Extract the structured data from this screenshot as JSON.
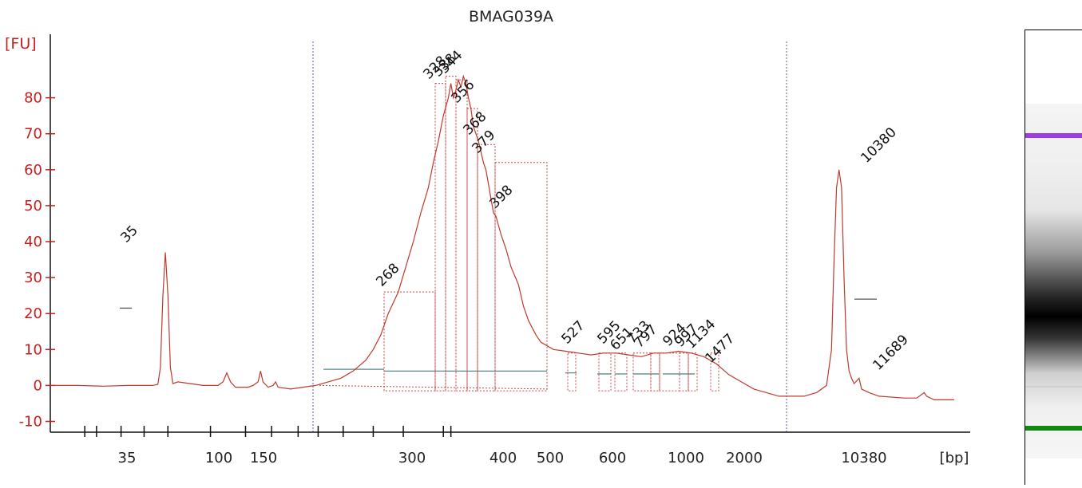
{
  "chart_data": {
    "type": "line",
    "title": "BMAG039A",
    "ylabel": "[FU]",
    "xlabel": "[bp]",
    "ylim": [
      -13,
      95
    ],
    "y_ticks": [
      -10,
      0,
      10,
      20,
      30,
      40,
      50,
      60,
      70,
      80
    ],
    "x_ticks": [
      "35",
      "",
      "100",
      "150",
      "",
      "300",
      "400",
      "500",
      "600",
      "",
      "1000",
      "2000",
      "",
      "10380",
      "",
      "[bp]"
    ],
    "markers": {
      "lower": {
        "label": "35",
        "color": "#1e8c1e",
        "height": 37
      },
      "upper": {
        "label": "10380",
        "color": "#a040e0",
        "height": 60
      }
    },
    "peaks": [
      {
        "label": "268",
        "height": 26
      },
      {
        "label": "328",
        "height": 84
      },
      {
        "label": "338",
        "height": 86
      },
      {
        "label": "344",
        "height": 85
      },
      {
        "label": "356",
        "height": 77
      },
      {
        "label": "368",
        "height": 67
      },
      {
        "label": "379",
        "height": 62
      },
      {
        "label": "398",
        "height": 48
      },
      {
        "label": "527",
        "height": 10
      },
      {
        "label": "595",
        "height": 9
      },
      {
        "label": "651",
        "height": 8
      },
      {
        "label": "733",
        "height": 9
      },
      {
        "label": "797",
        "height": 9
      },
      {
        "label": "924",
        "height": 8
      },
      {
        "label": "997",
        "height": 8
      },
      {
        "label": "1134",
        "height": 8
      },
      {
        "label": "1477",
        "height": 4
      },
      {
        "label": "11689",
        "height": 2
      }
    ],
    "series": [
      {
        "values": [
          [
            0,
            0
          ],
          [
            10,
            0
          ],
          [
            20,
            -0.2
          ],
          [
            30,
            0
          ],
          [
            40,
            0
          ],
          [
            42,
            0.3
          ],
          [
            43,
            5
          ],
          [
            44,
            25
          ],
          [
            45,
            37
          ],
          [
            46,
            25
          ],
          [
            47,
            5
          ],
          [
            48,
            0.5
          ],
          [
            50,
            1
          ],
          [
            55,
            0.5
          ],
          [
            60,
            0
          ],
          [
            66,
            0
          ],
          [
            68,
            1
          ],
          [
            69.5,
            3.5
          ],
          [
            71,
            1
          ],
          [
            73,
            -0.5
          ],
          [
            78,
            -0.5
          ],
          [
            80,
            0
          ],
          [
            82,
            1
          ],
          [
            83,
            4
          ],
          [
            84,
            1
          ],
          [
            86,
            -0.5
          ],
          [
            88,
            0
          ],
          [
            89,
            1
          ],
          [
            90,
            -0.5
          ],
          [
            95,
            -1
          ],
          [
            100,
            -0.5
          ],
          [
            105,
            0
          ],
          [
            110,
            1
          ],
          [
            115,
            2
          ],
          [
            120,
            4
          ],
          [
            125,
            7
          ],
          [
            128,
            10
          ],
          [
            131,
            14
          ],
          [
            134,
            20
          ],
          [
            136,
            23
          ],
          [
            138,
            26
          ],
          [
            141,
            33
          ],
          [
            144,
            40
          ],
          [
            147,
            48
          ],
          [
            150,
            55
          ],
          [
            152,
            62
          ],
          [
            154,
            68
          ],
          [
            156,
            75
          ],
          [
            158,
            80
          ],
          [
            159,
            84
          ],
          [
            160,
            80
          ],
          [
            161,
            82
          ],
          [
            162,
            85
          ],
          [
            163,
            83
          ],
          [
            164,
            86
          ],
          [
            165,
            84
          ],
          [
            166,
            80
          ],
          [
            167,
            77
          ],
          [
            168,
            72
          ],
          [
            170,
            68
          ],
          [
            171,
            65
          ],
          [
            172,
            62
          ],
          [
            173,
            60
          ],
          [
            174,
            56
          ],
          [
            175,
            52
          ],
          [
            176,
            48
          ],
          [
            177,
            47
          ],
          [
            179,
            42
          ],
          [
            181,
            38
          ],
          [
            183,
            33
          ],
          [
            186,
            28
          ],
          [
            188,
            22
          ],
          [
            190,
            18
          ],
          [
            193,
            14
          ],
          [
            195,
            12
          ],
          [
            200,
            10
          ],
          [
            205,
            9.5
          ],
          [
            210,
            9
          ],
          [
            215,
            8.5
          ],
          [
            220,
            9
          ],
          [
            225,
            9
          ],
          [
            230,
            8.5
          ],
          [
            235,
            8
          ],
          [
            240,
            9
          ],
          [
            245,
            9
          ],
          [
            250,
            9.5
          ],
          [
            255,
            9
          ],
          [
            260,
            8
          ],
          [
            265,
            6
          ],
          [
            270,
            3
          ],
          [
            275,
            1
          ],
          [
            280,
            -1
          ],
          [
            285,
            -2
          ],
          [
            290,
            -3
          ],
          [
            295,
            -3
          ],
          [
            300,
            -3
          ],
          [
            305,
            -2
          ],
          [
            309,
            0
          ],
          [
            311,
            10
          ],
          [
            312,
            35
          ],
          [
            313,
            55
          ],
          [
            314,
            60
          ],
          [
            315,
            55
          ],
          [
            316,
            30
          ],
          [
            317,
            10
          ],
          [
            318,
            4
          ],
          [
            319,
            2
          ],
          [
            320,
            0.5
          ],
          [
            322,
            2
          ],
          [
            323,
            -1
          ],
          [
            326,
            -2
          ],
          [
            330,
            -3
          ],
          [
            340,
            -3.5
          ],
          [
            345,
            -3.5
          ],
          [
            348,
            -2
          ],
          [
            349,
            -3
          ],
          [
            352,
            -4
          ],
          [
            360,
            -4
          ]
        ]
      }
    ]
  }
}
